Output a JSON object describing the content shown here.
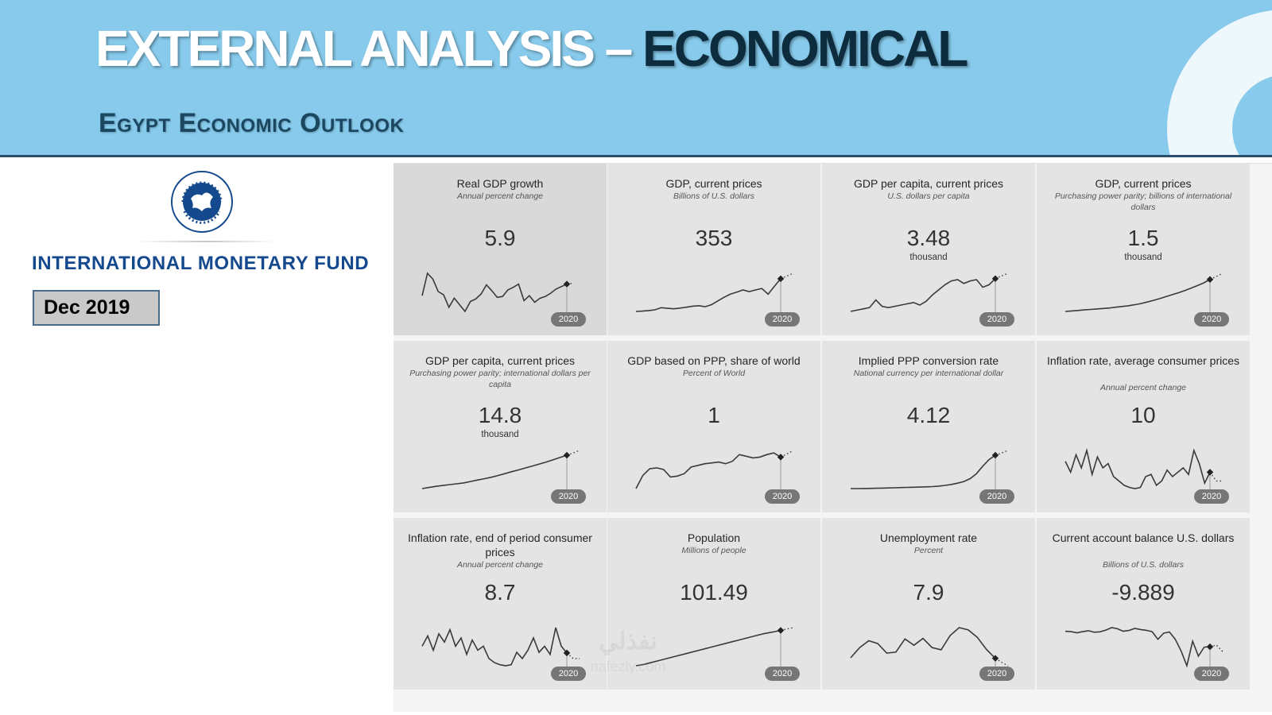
{
  "header": {
    "title_light": "EXTERNAL ANALYSIS – ",
    "title_dark": "ECONOMICAL",
    "subtitle": "Egypt Economic Outlook"
  },
  "sidebar": {
    "logo_icon": "imf-seal-icon",
    "org_name": "INTERNATIONAL MONETARY FUND",
    "date_label": "Dec 2019"
  },
  "colors": {
    "banner": "#87CAEB",
    "brand_blue": "#15498E",
    "card_bg": "#e4e4e4"
  },
  "watermark": {
    "primary": "نفذلي",
    "secondary": "nafezly.com"
  },
  "indicators": [
    {
      "title": "Real GDP growth",
      "unit": "Annual percent change",
      "value": "5.9",
      "sub": "",
      "year": "2020",
      "trend": [
        4.5,
        7.2,
        6.5,
        5.0,
        4.6,
        3.1,
        4.2,
        3.4,
        2.6,
        3.8,
        4.1,
        4.7,
        5.8,
        5.1,
        4.3,
        4.4,
        5.2,
        5.5,
        5.9,
        3.9,
        4.5,
        3.7,
        4.2,
        4.4,
        4.8,
        5.3,
        5.6,
        5.9
      ],
      "proj": [
        5.9,
        6.0
      ]
    },
    {
      "title": "GDP, current prices",
      "unit": "Billions of U.S. dollars",
      "value": "353",
      "sub": "",
      "year": "2020",
      "trend": [
        40,
        43,
        48,
        55,
        76,
        70,
        65,
        72,
        80,
        90,
        95,
        85,
        105,
        140,
        175,
        205,
        225,
        245,
        230,
        245,
        260,
        205,
        280,
        353
      ],
      "proj": [
        353,
        380,
        405
      ]
    },
    {
      "title": "GDP per capita, current prices",
      "unit": "U.S. dollars per capita",
      "value": "3.48",
      "sub": "thousand",
      "year": "2020",
      "trend": [
        0.9,
        1.0,
        1.1,
        1.2,
        1.8,
        1.3,
        1.2,
        1.3,
        1.4,
        1.5,
        1.6,
        1.4,
        1.7,
        2.2,
        2.6,
        3.0,
        3.3,
        3.4,
        3.1,
        3.3,
        3.4,
        2.8,
        3.0,
        3.48
      ],
      "proj": [
        3.48,
        3.7,
        3.9
      ]
    },
    {
      "title": "GDP, current prices",
      "unit": "Purchasing power parity; billions of international dollars",
      "value": "1.5",
      "sub": "thousand",
      "year": "2020",
      "trend": [
        0.2,
        0.22,
        0.24,
        0.26,
        0.28,
        0.3,
        0.32,
        0.34,
        0.37,
        0.4,
        0.43,
        0.47,
        0.52,
        0.58,
        0.65,
        0.72,
        0.8,
        0.88,
        0.96,
        1.05,
        1.15,
        1.25,
        1.36,
        1.5
      ],
      "proj": [
        1.5,
        1.62,
        1.75
      ]
    },
    {
      "title": "GDP per capita, current prices",
      "unit": "Purchasing power parity; international dollars per capita",
      "value": "14.8",
      "sub": "thousand",
      "year": "2020",
      "trend": [
        3.0,
        3.4,
        3.8,
        4.1,
        4.4,
        4.7,
        5.0,
        5.5,
        6.0,
        6.5,
        7.0,
        7.6,
        8.3,
        9.0,
        9.6,
        10.3,
        11.0,
        11.7,
        12.4,
        13.2,
        14.0,
        14.8
      ],
      "proj": [
        14.8,
        15.6,
        16.5
      ]
    },
    {
      "title": "GDP based on PPP, share of world",
      "unit": "Percent of World",
      "value": "1",
      "sub": "",
      "year": "2020",
      "trend": [
        0.62,
        0.78,
        0.86,
        0.87,
        0.85,
        0.76,
        0.77,
        0.8,
        0.88,
        0.9,
        0.92,
        0.93,
        0.94,
        0.92,
        0.95,
        1.03,
        1.01,
        0.99,
        1.0,
        1.03,
        1.05,
        1.0
      ],
      "proj": [
        1.0,
        1.04,
        1.08
      ]
    },
    {
      "title": "Implied PPP conversion rate",
      "unit": "National currency per international dollar",
      "value": "4.12",
      "sub": "",
      "year": "2020",
      "trend": [
        0.1,
        0.1,
        0.11,
        0.12,
        0.14,
        0.16,
        0.18,
        0.2,
        0.22,
        0.24,
        0.26,
        0.28,
        0.31,
        0.34,
        0.4,
        0.48,
        0.6,
        0.75,
        0.95,
        1.3,
        1.9,
        2.8,
        3.6,
        4.12
      ],
      "proj": [
        4.12,
        4.4,
        4.7
      ]
    },
    {
      "title": "Inflation rate, average consumer prices",
      "unit": "Annual percent change",
      "value": "10",
      "sub": "",
      "year": "2020",
      "trend": [
        15,
        10,
        18,
        12,
        20,
        9,
        17,
        12,
        14,
        8,
        6,
        4,
        3,
        2.5,
        3,
        8,
        9,
        4,
        6,
        11,
        8,
        10,
        12,
        9,
        20,
        14,
        5,
        10
      ],
      "proj": [
        10,
        6,
        6
      ]
    },
    {
      "title": "Inflation rate, end of period consumer prices",
      "unit": "Annual percent change",
      "value": "8.7",
      "sub": "",
      "year": "2020",
      "trend": [
        12,
        17,
        10,
        18,
        14,
        20,
        12,
        16,
        8,
        15,
        10,
        12,
        6,
        4,
        3,
        2.5,
        3,
        9,
        6,
        10,
        16,
        9,
        12,
        8,
        21,
        12,
        8.7
      ],
      "proj": [
        8.7,
        6,
        6
      ]
    },
    {
      "title": "Population",
      "unit": "Millions of people",
      "value": "101.49",
      "sub": "",
      "year": "2020",
      "trend": [
        50,
        52,
        55,
        58,
        61,
        64,
        67,
        70,
        73,
        76,
        79,
        82,
        85,
        88,
        91,
        94,
        97,
        99,
        101.49
      ],
      "proj": [
        101.49,
        103.5,
        105.5
      ]
    },
    {
      "title": "Unemployment rate",
      "unit": "Percent",
      "value": "7.9",
      "sub": "",
      "year": "2020",
      "trend": [
        8.0,
        9.8,
        11.0,
        10.5,
        8.8,
        9.0,
        11.3,
        10.2,
        11.4,
        9.8,
        9.4,
        11.9,
        13.3,
        12.9,
        11.6,
        9.5,
        7.9
      ],
      "proj": [
        7.9,
        7.2,
        6.6
      ]
    },
    {
      "title": "Current account balance U.S. dollars",
      "unit": "Billions of U.S. dollars",
      "value": "-9.889",
      "sub": "",
      "year": "2020",
      "trend": [
        -1.8,
        -2.0,
        -2.6,
        -2.0,
        -1.5,
        -2.3,
        -2.1,
        -1.2,
        0.1,
        -0.5,
        -1.8,
        -1.4,
        -0.3,
        -0.9,
        -1.3,
        -2.0,
        -6.0,
        -2.8,
        -2.2,
        -6.0,
        -12.0,
        -19.8,
        -7.0,
        -14.8,
        -10.1,
        -9.889
      ],
      "proj": [
        -9.889,
        -9.0,
        -12.4
      ]
    }
  ]
}
